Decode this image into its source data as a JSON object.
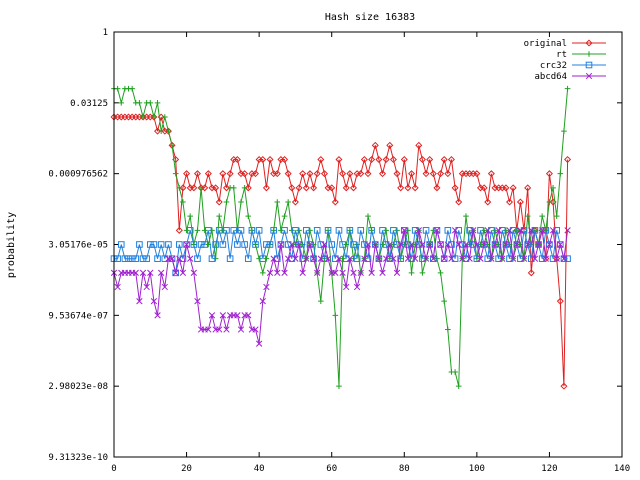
{
  "chart_data": {
    "type": "line",
    "title": "Hash size 16383",
    "xlabel": "",
    "ylabel": "probability",
    "y_scale": "log2",
    "xlim": [
      0,
      140
    ],
    "ylim_log2": [
      -30,
      0
    ],
    "x_ticks": [
      0,
      20,
      40,
      60,
      80,
      100,
      120,
      140
    ],
    "y_ticks": [
      {
        "log2": 0,
        "label": "1"
      },
      {
        "log2": -5,
        "label": "0.03125"
      },
      {
        "log2": -10,
        "label": "0.000976562"
      },
      {
        "log2": -15,
        "label": "3.05176e-05"
      },
      {
        "log2": -20,
        "label": "9.53674e-07"
      },
      {
        "log2": -25,
        "label": "2.98023e-08"
      },
      {
        "log2": -30,
        "label": "9.31323e-10"
      }
    ],
    "legend_position": "top-right",
    "series": [
      {
        "name": "original",
        "color": "#e02020",
        "marker": "diamond",
        "x": [
          0,
          1,
          2,
          3,
          4,
          5,
          6,
          7,
          8,
          9,
          10,
          11,
          12,
          13,
          14,
          15,
          16,
          17,
          18,
          19,
          20,
          21,
          22,
          23,
          24,
          25,
          26,
          27,
          28,
          29,
          30,
          31,
          32,
          33,
          34,
          35,
          36,
          37,
          38,
          39,
          40,
          41,
          42,
          43,
          44,
          45,
          46,
          47,
          48,
          49,
          50,
          51,
          52,
          53,
          54,
          55,
          56,
          57,
          58,
          59,
          60,
          61,
          62,
          63,
          64,
          65,
          66,
          67,
          68,
          69,
          70,
          71,
          72,
          73,
          74,
          75,
          76,
          77,
          78,
          79,
          80,
          81,
          82,
          83,
          84,
          85,
          86,
          87,
          88,
          89,
          90,
          91,
          92,
          93,
          94,
          95,
          96,
          97,
          98,
          99,
          100,
          101,
          102,
          103,
          104,
          105,
          106,
          107,
          108,
          109,
          110,
          111,
          112,
          113,
          114,
          115,
          116,
          117,
          118,
          119,
          120,
          121,
          122,
          123,
          124,
          125
        ],
        "y_log2": [
          -6,
          -6,
          -6,
          -6,
          -6,
          -6,
          -6,
          -6,
          -6,
          -6,
          -6,
          -6,
          -7,
          -6,
          -7,
          -7,
          -8,
          -9,
          -14,
          -11,
          -10,
          -11,
          -11,
          -10,
          -11,
          -11,
          -10,
          -11,
          -11,
          -12,
          -10,
          -11,
          -10,
          -9,
          -9,
          -10,
          -10,
          -11,
          -10,
          -10,
          -9,
          -9,
          -11,
          -9,
          -10,
          -10,
          -9,
          -9,
          -10,
          -11,
          -12,
          -11,
          -10,
          -11,
          -10,
          -11,
          -10,
          -9,
          -10,
          -11,
          -11,
          -12,
          -9,
          -10,
          -11,
          -10,
          -11,
          -10,
          -10,
          -9,
          -10,
          -9,
          -8,
          -9,
          -10,
          -9,
          -8,
          -9,
          -10,
          -11,
          -9,
          -11,
          -10,
          -11,
          -8,
          -9,
          -10,
          -9,
          -10,
          -11,
          -10,
          -9,
          -10,
          -9,
          -11,
          -12,
          -10,
          -10,
          -10,
          -10,
          -10,
          -11,
          -11,
          -12,
          -10,
          -11,
          -11,
          -11,
          -11,
          -12,
          -11,
          -14,
          -12,
          -14,
          -11,
          -17,
          -14,
          -15,
          -14,
          -16,
          -10,
          -12,
          -16,
          -19,
          -25,
          -9
        ]
      },
      {
        "name": "rt",
        "color": "#20a020",
        "marker": "plus",
        "x": [
          0,
          1,
          2,
          3,
          4,
          5,
          6,
          7,
          8,
          9,
          10,
          11,
          12,
          13,
          14,
          15,
          16,
          17,
          18,
          19,
          20,
          21,
          22,
          23,
          24,
          25,
          26,
          27,
          28,
          29,
          30,
          31,
          32,
          33,
          34,
          35,
          36,
          37,
          38,
          39,
          40,
          41,
          42,
          43,
          44,
          45,
          46,
          47,
          48,
          49,
          50,
          51,
          52,
          53,
          54,
          55,
          56,
          57,
          58,
          59,
          60,
          61,
          62,
          63,
          64,
          65,
          66,
          67,
          68,
          69,
          70,
          71,
          72,
          73,
          74,
          75,
          76,
          77,
          78,
          79,
          80,
          81,
          82,
          83,
          84,
          85,
          86,
          87,
          88,
          89,
          90,
          91,
          92,
          93,
          94,
          95,
          96,
          97,
          98,
          99,
          100,
          101,
          102,
          103,
          104,
          105,
          106,
          107,
          108,
          109,
          110,
          111,
          112,
          113,
          114,
          115,
          116,
          117,
          118,
          119,
          120,
          121,
          122,
          123,
          124,
          125
        ],
        "y_log2": [
          -4,
          -4,
          -5,
          -4,
          -4,
          -4,
          -5,
          -5,
          -6,
          -5,
          -5,
          -6,
          -5,
          -7,
          -6,
          -7,
          -8,
          -10,
          -11,
          -12,
          -14,
          -13,
          -15,
          -14,
          -11,
          -14,
          -15,
          -14,
          -16,
          -13,
          -14,
          -12,
          -11,
          -11,
          -14,
          -12,
          -11,
          -13,
          -14,
          -15,
          -16,
          -17,
          -16,
          -15,
          -14,
          -12,
          -14,
          -13,
          -12,
          -14,
          -15,
          -14,
          -15,
          -16,
          -14,
          -15,
          -17,
          -19,
          -16,
          -14,
          -17,
          -20,
          -25,
          -16,
          -15,
          -14,
          -16,
          -15,
          -17,
          -16,
          -13,
          -14,
          -15,
          -16,
          -15,
          -14,
          -16,
          -15,
          -14,
          -16,
          -15,
          -14,
          -17,
          -15,
          -14,
          -17,
          -16,
          -15,
          -14,
          -16,
          -17,
          -19,
          -21,
          -24,
          -24,
          -25,
          -16,
          -13,
          -15,
          -14,
          -16,
          -15,
          -14,
          -15,
          -16,
          -14,
          -15,
          -16,
          -14,
          -15,
          -16,
          -14,
          -15,
          -16,
          -13,
          -15,
          -14,
          -15,
          -13,
          -14,
          -12,
          -11,
          -13,
          -10,
          -7,
          -4
        ]
      },
      {
        "name": "crc32",
        "color": "#2080e0",
        "marker": "square",
        "x": [
          0,
          1,
          2,
          3,
          4,
          5,
          6,
          7,
          8,
          9,
          10,
          11,
          12,
          13,
          14,
          15,
          16,
          17,
          18,
          19,
          20,
          21,
          22,
          23,
          24,
          25,
          26,
          27,
          28,
          29,
          30,
          31,
          32,
          33,
          34,
          35,
          36,
          37,
          38,
          39,
          40,
          41,
          42,
          43,
          44,
          45,
          46,
          47,
          48,
          49,
          50,
          51,
          52,
          53,
          54,
          55,
          56,
          57,
          58,
          59,
          60,
          61,
          62,
          63,
          64,
          65,
          66,
          67,
          68,
          69,
          70,
          71,
          72,
          73,
          74,
          75,
          76,
          77,
          78,
          79,
          80,
          81,
          82,
          83,
          84,
          85,
          86,
          87,
          88,
          89,
          90,
          91,
          92,
          93,
          94,
          95,
          96,
          97,
          98,
          99,
          100,
          101,
          102,
          103,
          104,
          105,
          106,
          107,
          108,
          109,
          110,
          111,
          112,
          113,
          114,
          115,
          116,
          117,
          118,
          119,
          120,
          121,
          122,
          123,
          124,
          125
        ],
        "y_log2": [
          -16,
          -16,
          -15,
          -16,
          -16,
          -16,
          -16,
          -15,
          -16,
          -16,
          -15,
          -15,
          -16,
          -15,
          -16,
          -15,
          -16,
          -17,
          -15,
          -16,
          -15,
          -14,
          -15,
          -16,
          -15,
          -15,
          -14,
          -16,
          -15,
          -14,
          -15,
          -14,
          -16,
          -14,
          -15,
          -14,
          -15,
          -16,
          -14,
          -15,
          -14,
          -16,
          -15,
          -15,
          -14,
          -16,
          -15,
          -14,
          -15,
          -16,
          -14,
          -15,
          -16,
          -14,
          -15,
          -16,
          -14,
          -15,
          -16,
          -14,
          -15,
          -16,
          -14,
          -15,
          -16,
          -14,
          -15,
          -16,
          -14,
          -15,
          -16,
          -14,
          -15,
          -16,
          -14,
          -15,
          -16,
          -14,
          -15,
          -16,
          -14,
          -15,
          -16,
          -14,
          -15,
          -16,
          -14,
          -15,
          -16,
          -14,
          -15,
          -16,
          -14,
          -15,
          -16,
          -14,
          -15,
          -16,
          -14,
          -15,
          -16,
          -14,
          -15,
          -16,
          -14,
          -15,
          -16,
          -14,
          -15,
          -16,
          -14,
          -15,
          -16,
          -14,
          -15,
          -16,
          -14,
          -15,
          -16,
          -14,
          -15,
          -16,
          -14,
          -15,
          -16,
          -16
        ]
      },
      {
        "name": "abcd64",
        "color": "#a020d0",
        "marker": "cross",
        "x": [
          0,
          1,
          2,
          3,
          4,
          5,
          6,
          7,
          8,
          9,
          10,
          11,
          12,
          13,
          14,
          15,
          16,
          17,
          18,
          19,
          20,
          21,
          22,
          23,
          24,
          25,
          26,
          27,
          28,
          29,
          30,
          31,
          32,
          33,
          34,
          35,
          36,
          37,
          38,
          39,
          40,
          41,
          42,
          43,
          44,
          45,
          46,
          47,
          48,
          49,
          50,
          51,
          52,
          53,
          54,
          55,
          56,
          57,
          58,
          59,
          60,
          61,
          62,
          63,
          64,
          65,
          66,
          67,
          68,
          69,
          70,
          71,
          72,
          73,
          74,
          75,
          76,
          77,
          78,
          79,
          80,
          81,
          82,
          83,
          84,
          85,
          86,
          87,
          88,
          89,
          90,
          91,
          92,
          93,
          94,
          95,
          96,
          97,
          98,
          99,
          100,
          101,
          102,
          103,
          104,
          105,
          106,
          107,
          108,
          109,
          110,
          111,
          112,
          113,
          114,
          115,
          116,
          117,
          118,
          119,
          120,
          121,
          122,
          123,
          124,
          125
        ],
        "y_log2": [
          -17,
          -18,
          -17,
          -17,
          -17,
          -17,
          -17,
          -19,
          -17,
          -18,
          -17,
          -19,
          -20,
          -17,
          -18,
          -16,
          -16,
          -17,
          -16,
          -17,
          -15,
          -16,
          -17,
          -19,
          -21,
          -21,
          -21,
          -20,
          -21,
          -21,
          -20,
          -21,
          -20,
          -20,
          -20,
          -21,
          -20,
          -20,
          -21,
          -21,
          -22,
          -19,
          -18,
          -17,
          -16,
          -17,
          -15,
          -17,
          -16,
          -15,
          -16,
          -15,
          -17,
          -16,
          -15,
          -16,
          -17,
          -16,
          -15,
          -16,
          -17,
          -17,
          -16,
          -17,
          -18,
          -16,
          -17,
          -18,
          -17,
          -16,
          -15,
          -17,
          -15,
          -16,
          -17,
          -16,
          -15,
          -16,
          -17,
          -15,
          -14,
          -16,
          -15,
          -16,
          -14,
          -15,
          -16,
          -15,
          -16,
          -14,
          -15,
          -16,
          -15,
          -16,
          -14,
          -15,
          -16,
          -15,
          -16,
          -14,
          -15,
          -16,
          -15,
          -14,
          -16,
          -15,
          -14,
          -16,
          -15,
          -14,
          -16,
          -15,
          -14,
          -16,
          -15,
          -14,
          -16,
          -15,
          -14,
          -16,
          -15,
          -14,
          -16,
          -15,
          -16,
          -14
        ]
      }
    ]
  }
}
